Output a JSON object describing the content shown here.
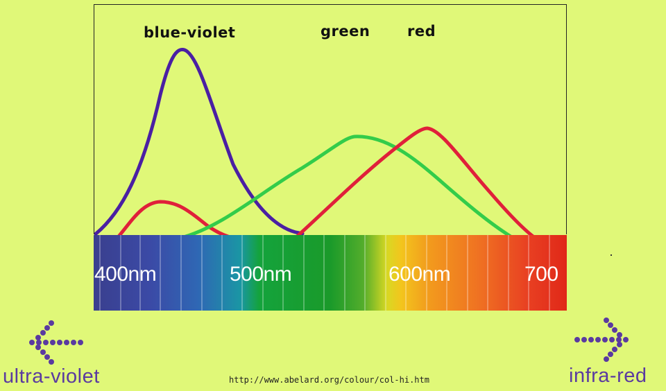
{
  "curves": [
    {
      "name": "blue-violet",
      "color": "#4a1fa3"
    },
    {
      "name": "green",
      "color": "#33cc4a"
    },
    {
      "name": "red",
      "color": "#e0203a"
    }
  ],
  "spectrum": {
    "labels": [
      "400nm",
      "500nm",
      "600nm",
      "700"
    ]
  },
  "edges": {
    "left": "ultra-violet",
    "right": "infra-red",
    "color": "#5a3aa0"
  },
  "source_url": "http://www.abelard.org/colour/col-hi.htm"
}
